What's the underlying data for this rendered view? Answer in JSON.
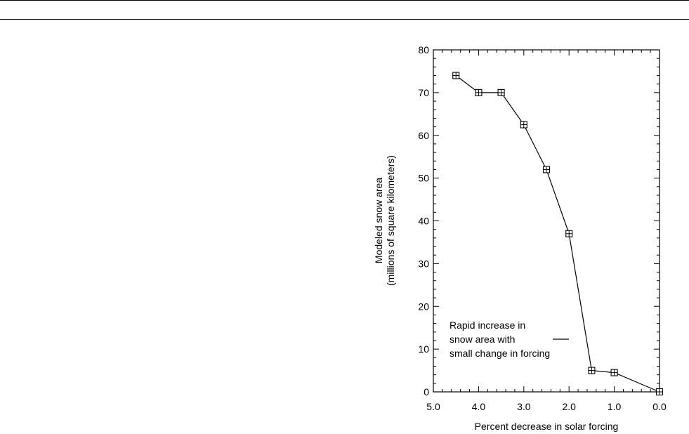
{
  "chart_data": {
    "type": "line",
    "title": "",
    "xlabel": "Percent decrease in solar forcing",
    "ylabel_lines": [
      "Modeled snow area",
      "(millions of square kilometers)"
    ],
    "xlim": [
      5.0,
      0.0
    ],
    "x_reversed": true,
    "ylim": [
      0,
      80
    ],
    "x_ticks": [
      5.0,
      4.0,
      3.0,
      2.0,
      1.0,
      0.0
    ],
    "x_tick_labels": [
      "5.0",
      "4.0",
      "3.0",
      "2.0",
      "1.0",
      "0.0"
    ],
    "y_ticks": [
      0,
      10,
      20,
      30,
      40,
      50,
      60,
      70,
      80
    ],
    "y_tick_labels": [
      "0",
      "10",
      "20",
      "30",
      "40",
      "50",
      "60",
      "70",
      "80"
    ],
    "grid": false,
    "series": [
      {
        "marker": "boxed-plus",
        "x": [
          4.5,
          4.0,
          3.5,
          3.0,
          2.5,
          2.0,
          1.5,
          1.0,
          0.0
        ],
        "y": [
          74,
          70,
          70,
          62.5,
          52,
          37,
          5,
          4.5,
          0
        ]
      }
    ],
    "annotation": {
      "lines": [
        "Rapid increase in",
        "snow area with",
        "small change in forcing"
      ],
      "points_to": "segment between 2.0 and 1.5"
    }
  }
}
